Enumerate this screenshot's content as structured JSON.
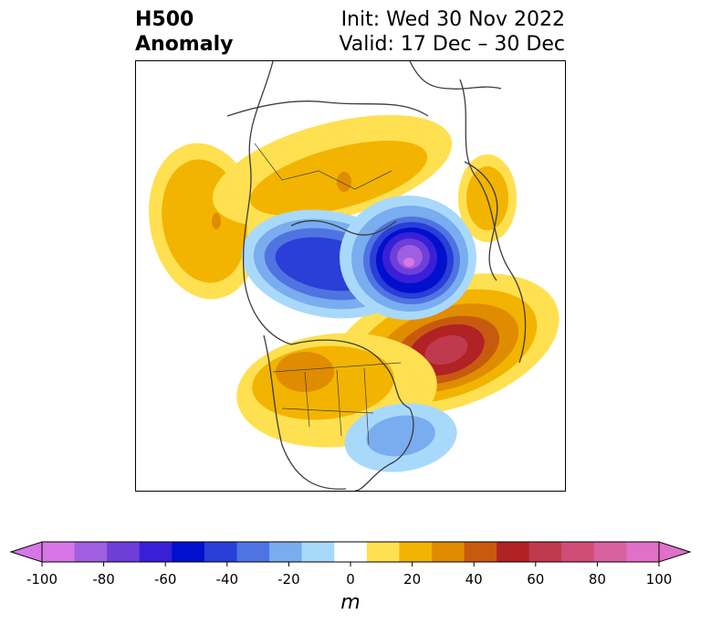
{
  "title": {
    "left_line1": "H500",
    "left_line2": "Anomaly",
    "right_line1": "Init: Wed 30 Nov 2022",
    "right_line2": "Valid: 17 Dec – 30 Dec"
  },
  "colorbar": {
    "unit": "m",
    "ticks": [
      "-100",
      "-80",
      "-60",
      "-40",
      "-20",
      "0",
      "20",
      "40",
      "60",
      "80",
      "100"
    ],
    "levels": [
      -100,
      -90,
      -80,
      -70,
      -60,
      -50,
      -40,
      -30,
      -20,
      -10,
      10,
      20,
      30,
      40,
      50,
      60,
      70,
      80,
      90,
      100
    ],
    "colors": [
      "#d876e8",
      "#a05ee0",
      "#6e3ed8",
      "#3a1fd8",
      "#0010cc",
      "#2a3ed8",
      "#4f74e2",
      "#7aacf0",
      "#a9d9fa",
      "#ffffff",
      "#ffe050",
      "#f2b400",
      "#e08c00",
      "#c85a10",
      "#b02224",
      "#c03a4e",
      "#cf4e78",
      "#d862a0",
      "#e070c8"
    ],
    "extend_low_color": "#d876e8",
    "extend_high_color": "#e070c8"
  },
  "map": {
    "projection": "polar stereographic, North America / Arctic centered",
    "anomaly_features": [
      {
        "name": "ridge-north-pacific-bering",
        "sign": "positive",
        "peak_m": 40
      },
      {
        "name": "ridge-siberia",
        "sign": "positive",
        "peak_m": 30
      },
      {
        "name": "ridge-east-asia",
        "sign": "positive",
        "peak_m": 20
      },
      {
        "name": "trough-arctic-greenland",
        "sign": "negative",
        "peak_m": -90
      },
      {
        "name": "trough-canadian-arctic-alaska",
        "sign": "negative",
        "peak_m": -60
      },
      {
        "name": "ridge-north-atlantic",
        "sign": "positive",
        "peak_m": 70
      },
      {
        "name": "ridge-western-north-america",
        "sign": "positive",
        "peak_m": 40
      },
      {
        "name": "trough-southeast-us",
        "sign": "negative",
        "peak_m": -30
      }
    ]
  }
}
